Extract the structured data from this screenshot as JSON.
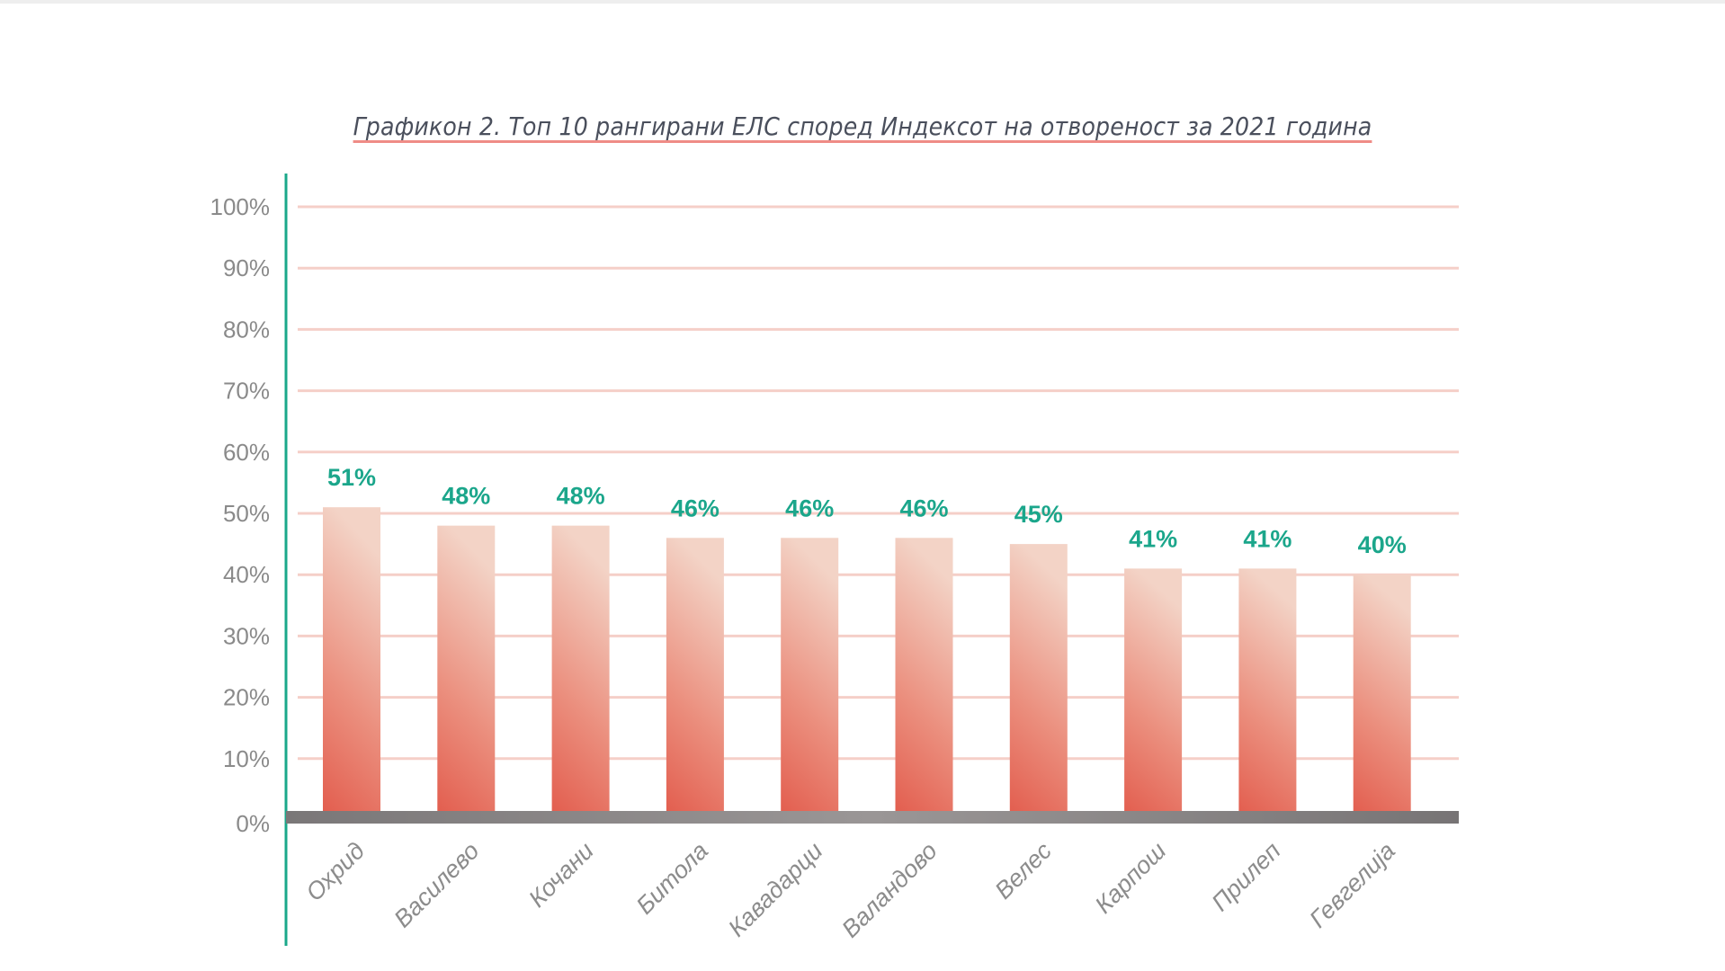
{
  "chart_data": {
    "type": "bar",
    "title": "Графикон 2. Топ 10 рангирани ЕЛС според Индексот на отвореност за 2021 година",
    "xlabel": "",
    "ylabel": "",
    "ylim": [
      0,
      100
    ],
    "yticks": [
      "0%",
      "10%",
      "20%",
      "30%",
      "40%",
      "50%",
      "60%",
      "70%",
      "80%",
      "90%",
      "100%"
    ],
    "grid": true,
    "categories": [
      "Охрид",
      "Василево",
      "Кочани",
      "Битола",
      "Кавадарци",
      "Валандово",
      "Велес",
      "Карпош",
      "Прилеп",
      "Гевгелија"
    ],
    "values": [
      51,
      48,
      48,
      46,
      46,
      46,
      45,
      41,
      41,
      40
    ],
    "value_labels": [
      "51%",
      "48%",
      "48%",
      "46%",
      "46%",
      "46%",
      "45%",
      "41%",
      "41%",
      "40%"
    ],
    "colors": {
      "bar_top": "#f3d3c6",
      "bar_bottom": "#e25b4c",
      "labels": "#1ba68b",
      "axis": "#1aa88a",
      "grid": "#f5cfc8",
      "baseline": "#858283",
      "title_underline": "#ef8c86"
    }
  }
}
